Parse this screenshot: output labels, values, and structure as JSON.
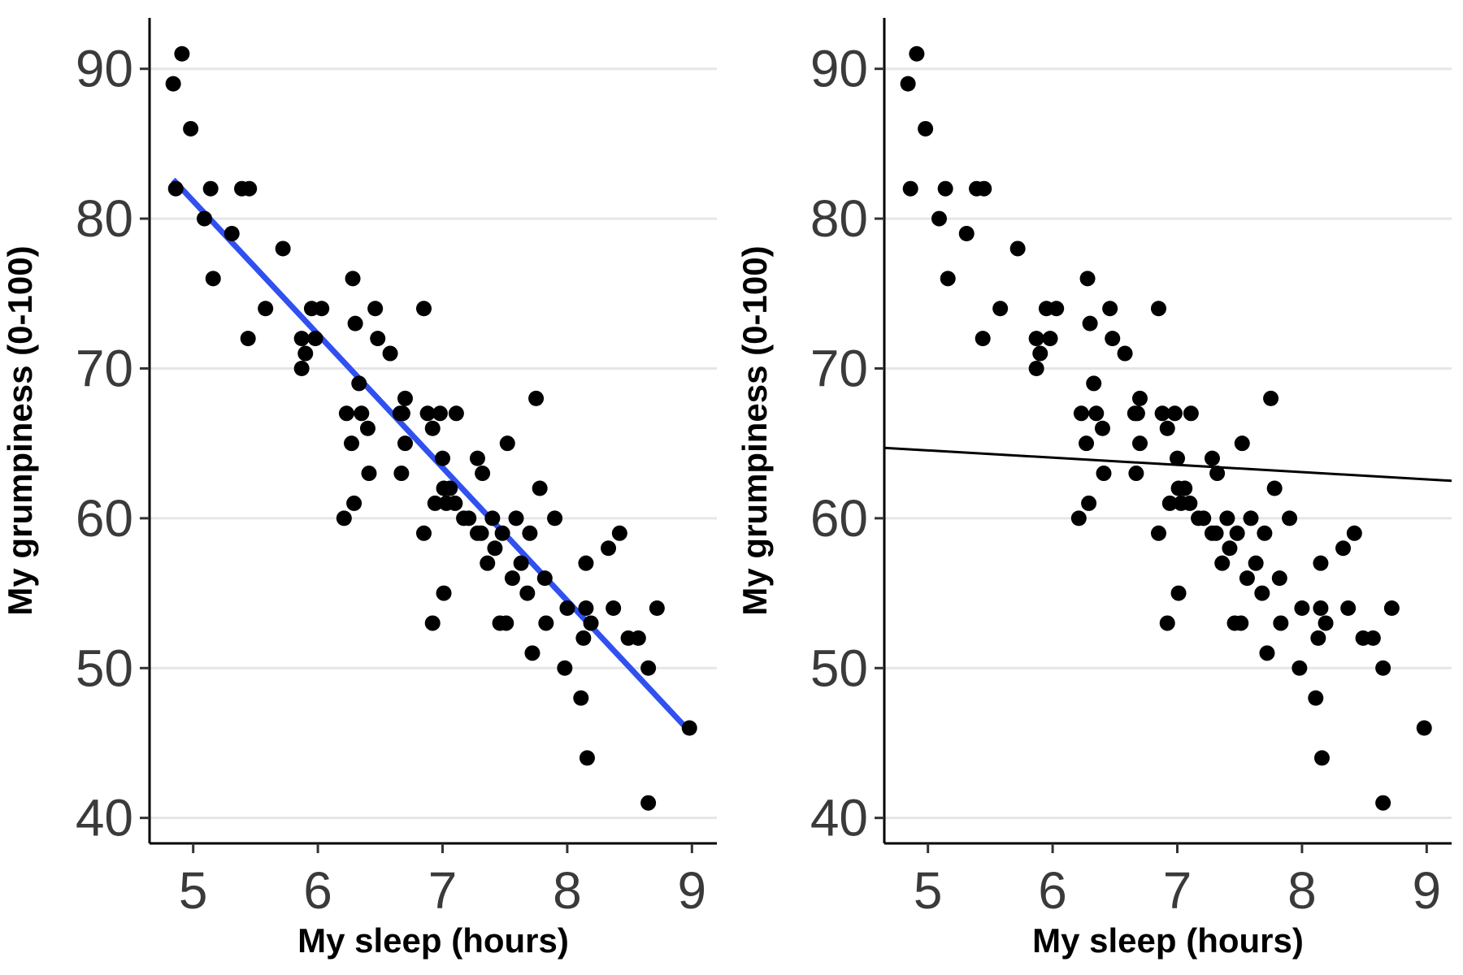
{
  "chart_data": [
    {
      "type": "scatter",
      "xlabel": "My sleep (hours)",
      "ylabel": "My grumpiness (0-100)",
      "xlim": [
        4.65,
        9.2
      ],
      "ylim": [
        38.3,
        93.4
      ],
      "xticks": [
        5,
        6,
        7,
        8,
        9
      ],
      "yticks": [
        40,
        50,
        60,
        70,
        80,
        90
      ],
      "grid": "horizontal major",
      "points_color": "#000000",
      "fit_line": {
        "color": "#3050f0",
        "x": [
          4.84,
          9.0
        ],
        "y": [
          82.6,
          45.6
        ]
      },
      "points": [
        [
          4.84,
          89
        ],
        [
          4.91,
          91
        ],
        [
          4.86,
          82
        ],
        [
          4.98,
          86
        ],
        [
          5.09,
          80
        ],
        [
          5.14,
          82
        ],
        [
          5.16,
          76
        ],
        [
          5.31,
          79
        ],
        [
          5.39,
          82
        ],
        [
          5.44,
          72
        ],
        [
          5.45,
          82
        ],
        [
          5.58,
          74
        ],
        [
          5.72,
          78
        ],
        [
          5.87,
          70
        ],
        [
          5.87,
          72
        ],
        [
          5.9,
          71
        ],
        [
          5.95,
          74
        ],
        [
          5.98,
          72
        ],
        [
          6.03,
          74
        ],
        [
          6.21,
          60
        ],
        [
          6.23,
          67
        ],
        [
          6.27,
          65
        ],
        [
          6.28,
          76
        ],
        [
          6.29,
          61
        ],
        [
          6.3,
          73
        ],
        [
          6.33,
          69
        ],
        [
          6.35,
          67
        ],
        [
          6.4,
          66
        ],
        [
          6.41,
          63
        ],
        [
          6.46,
          74
        ],
        [
          6.48,
          72
        ],
        [
          6.58,
          71
        ],
        [
          6.66,
          67
        ],
        [
          6.67,
          63
        ],
        [
          6.68,
          67
        ],
        [
          6.7,
          65
        ],
        [
          6.7,
          68
        ],
        [
          6.85,
          74
        ],
        [
          6.85,
          59
        ],
        [
          6.88,
          67
        ],
        [
          6.92,
          66
        ],
        [
          6.92,
          53
        ],
        [
          6.94,
          61
        ],
        [
          6.98,
          67
        ],
        [
          7.0,
          64
        ],
        [
          7.01,
          62
        ],
        [
          7.01,
          55
        ],
        [
          7.03,
          61
        ],
        [
          7.06,
          62
        ],
        [
          7.1,
          61
        ],
        [
          7.11,
          67
        ],
        [
          7.17,
          60
        ],
        [
          7.21,
          60
        ],
        [
          7.28,
          64
        ],
        [
          7.28,
          59
        ],
        [
          7.31,
          59
        ],
        [
          7.32,
          63
        ],
        [
          7.36,
          57
        ],
        [
          7.4,
          60
        ],
        [
          7.42,
          58
        ],
        [
          7.46,
          53
        ],
        [
          7.48,
          59
        ],
        [
          7.51,
          53
        ],
        [
          7.52,
          65
        ],
        [
          7.56,
          56
        ],
        [
          7.59,
          60
        ],
        [
          7.63,
          57
        ],
        [
          7.68,
          55
        ],
        [
          7.7,
          59
        ],
        [
          7.72,
          51
        ],
        [
          7.75,
          68
        ],
        [
          7.78,
          62
        ],
        [
          7.82,
          56
        ],
        [
          7.83,
          53
        ],
        [
          7.9,
          60
        ],
        [
          7.98,
          50
        ],
        [
          8.0,
          54
        ],
        [
          8.11,
          48
        ],
        [
          8.13,
          52
        ],
        [
          8.15,
          57
        ],
        [
          8.15,
          54
        ],
        [
          8.16,
          44
        ],
        [
          8.19,
          53
        ],
        [
          8.33,
          58
        ],
        [
          8.37,
          54
        ],
        [
          8.42,
          59
        ],
        [
          8.49,
          52
        ],
        [
          8.57,
          52
        ],
        [
          8.65,
          50
        ],
        [
          8.65,
          41
        ],
        [
          8.72,
          54
        ],
        [
          8.98,
          46
        ]
      ]
    },
    {
      "type": "scatter",
      "xlabel": "My sleep (hours)",
      "ylabel": "My grumpiness (0-100)",
      "xlim": [
        4.65,
        9.2
      ],
      "ylim": [
        38.3,
        93.4
      ],
      "xticks": [
        5,
        6,
        7,
        8,
        9
      ],
      "yticks": [
        40,
        50,
        60,
        70,
        80,
        90
      ],
      "grid": "horizontal major",
      "points_color": "#000000",
      "fit_line": {
        "color": "#000000",
        "x": [
          4.65,
          9.2
        ],
        "y": [
          64.7,
          62.5
        ]
      },
      "points": [
        [
          4.84,
          89
        ],
        [
          4.91,
          91
        ],
        [
          4.86,
          82
        ],
        [
          4.98,
          86
        ],
        [
          5.09,
          80
        ],
        [
          5.14,
          82
        ],
        [
          5.16,
          76
        ],
        [
          5.31,
          79
        ],
        [
          5.39,
          82
        ],
        [
          5.44,
          72
        ],
        [
          5.45,
          82
        ],
        [
          5.58,
          74
        ],
        [
          5.72,
          78
        ],
        [
          5.87,
          70
        ],
        [
          5.87,
          72
        ],
        [
          5.9,
          71
        ],
        [
          5.95,
          74
        ],
        [
          5.98,
          72
        ],
        [
          6.03,
          74
        ],
        [
          6.21,
          60
        ],
        [
          6.23,
          67
        ],
        [
          6.27,
          65
        ],
        [
          6.28,
          76
        ],
        [
          6.29,
          61
        ],
        [
          6.3,
          73
        ],
        [
          6.33,
          69
        ],
        [
          6.35,
          67
        ],
        [
          6.4,
          66
        ],
        [
          6.41,
          63
        ],
        [
          6.46,
          74
        ],
        [
          6.48,
          72
        ],
        [
          6.58,
          71
        ],
        [
          6.66,
          67
        ],
        [
          6.67,
          63
        ],
        [
          6.68,
          67
        ],
        [
          6.7,
          65
        ],
        [
          6.7,
          68
        ],
        [
          6.85,
          74
        ],
        [
          6.85,
          59
        ],
        [
          6.88,
          67
        ],
        [
          6.92,
          66
        ],
        [
          6.92,
          53
        ],
        [
          6.94,
          61
        ],
        [
          6.98,
          67
        ],
        [
          7.0,
          64
        ],
        [
          7.01,
          62
        ],
        [
          7.01,
          55
        ],
        [
          7.03,
          61
        ],
        [
          7.06,
          62
        ],
        [
          7.1,
          61
        ],
        [
          7.11,
          67
        ],
        [
          7.17,
          60
        ],
        [
          7.21,
          60
        ],
        [
          7.28,
          64
        ],
        [
          7.28,
          59
        ],
        [
          7.31,
          59
        ],
        [
          7.32,
          63
        ],
        [
          7.36,
          57
        ],
        [
          7.4,
          60
        ],
        [
          7.42,
          58
        ],
        [
          7.46,
          53
        ],
        [
          7.48,
          59
        ],
        [
          7.51,
          53
        ],
        [
          7.52,
          65
        ],
        [
          7.56,
          56
        ],
        [
          7.59,
          60
        ],
        [
          7.63,
          57
        ],
        [
          7.68,
          55
        ],
        [
          7.7,
          59
        ],
        [
          7.72,
          51
        ],
        [
          7.75,
          68
        ],
        [
          7.78,
          62
        ],
        [
          7.82,
          56
        ],
        [
          7.83,
          53
        ],
        [
          7.9,
          60
        ],
        [
          7.98,
          50
        ],
        [
          8.0,
          54
        ],
        [
          8.11,
          48
        ],
        [
          8.13,
          52
        ],
        [
          8.15,
          57
        ],
        [
          8.15,
          54
        ],
        [
          8.16,
          44
        ],
        [
          8.19,
          53
        ],
        [
          8.33,
          58
        ],
        [
          8.37,
          54
        ],
        [
          8.42,
          59
        ],
        [
          8.49,
          52
        ],
        [
          8.57,
          52
        ],
        [
          8.65,
          50
        ],
        [
          8.65,
          41
        ],
        [
          8.72,
          54
        ],
        [
          8.98,
          46
        ]
      ]
    }
  ]
}
